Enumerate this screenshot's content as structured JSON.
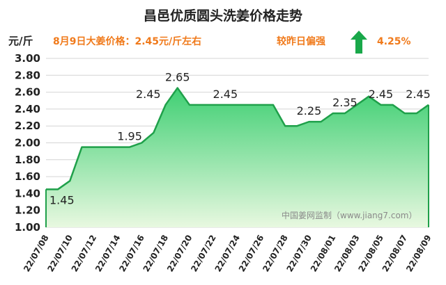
{
  "header": {
    "title": "昌邑优质圆头洗姜价格走势",
    "unit": "元/斤",
    "price_info": "8月9日大姜价格：2.45元/斤左右",
    "compare_text": "较昨日偏强",
    "change": "4.25%",
    "arrow_icon": "up-arrow-icon",
    "arrow_color": "#19a84a",
    "info_color": "#f07a1b"
  },
  "watermark": "中国姜网监制（www.jiang7.com）",
  "chart_data": {
    "type": "area",
    "ylim": [
      1.0,
      3.0
    ],
    "yticks": [
      "1.00",
      "1.20",
      "1.40",
      "1.60",
      "1.80",
      "2.00",
      "2.20",
      "2.40",
      "2.60",
      "2.80",
      "3.00"
    ],
    "xtick_labels": [
      "22/07/08",
      "22/07/10",
      "22/07/12",
      "22/07/14",
      "22/07/16",
      "22/07/18",
      "22/07/20",
      "22/07/22",
      "22/07/24",
      "22/07/26",
      "22/07/28",
      "22/07/30",
      "22/08/01",
      "22/08/03",
      "22/08/05",
      "22/08/07",
      "22/08/09"
    ],
    "x": [
      "22/07/08",
      "22/07/09",
      "22/07/10",
      "22/07/11",
      "22/07/12",
      "22/07/13",
      "22/07/14",
      "22/07/15",
      "22/07/16",
      "22/07/17",
      "22/07/18",
      "22/07/19",
      "22/07/20",
      "22/07/21",
      "22/07/22",
      "22/07/23",
      "22/07/24",
      "22/07/25",
      "22/07/26",
      "22/07/27",
      "22/07/28",
      "22/07/29",
      "22/07/30",
      "22/07/31",
      "22/08/01",
      "22/08/02",
      "22/08/03",
      "22/08/04",
      "22/08/05",
      "22/08/06",
      "22/08/07",
      "22/08/08",
      "22/08/09"
    ],
    "values": [
      1.45,
      1.45,
      1.55,
      1.95,
      1.95,
      1.95,
      1.95,
      1.95,
      2.0,
      2.12,
      2.45,
      2.65,
      2.45,
      2.45,
      2.45,
      2.45,
      2.45,
      2.45,
      2.45,
      2.45,
      2.2,
      2.2,
      2.25,
      2.25,
      2.35,
      2.35,
      2.45,
      2.55,
      2.45,
      2.45,
      2.35,
      2.35,
      2.45
    ],
    "data_labels": [
      {
        "index": 0,
        "text": "1.45",
        "pos": "below"
      },
      {
        "index": 7,
        "text": "1.95",
        "pos": "above"
      },
      {
        "index": 10,
        "text": "2.45",
        "pos": "above-left"
      },
      {
        "index": 11,
        "text": "2.65",
        "pos": "above"
      },
      {
        "index": 15,
        "text": "2.45",
        "pos": "above"
      },
      {
        "index": 22,
        "text": "2.25",
        "pos": "above"
      },
      {
        "index": 25,
        "text": "2.35",
        "pos": "above"
      },
      {
        "index": 28,
        "text": "2.45",
        "pos": "above"
      },
      {
        "index": 32,
        "text": "2.45",
        "pos": "above"
      }
    ],
    "line_color": "#1fa04a",
    "fill_top_color": "#3fcf73",
    "fill_bottom_color": "#e8f8e0",
    "grid": true,
    "legend": "none"
  }
}
